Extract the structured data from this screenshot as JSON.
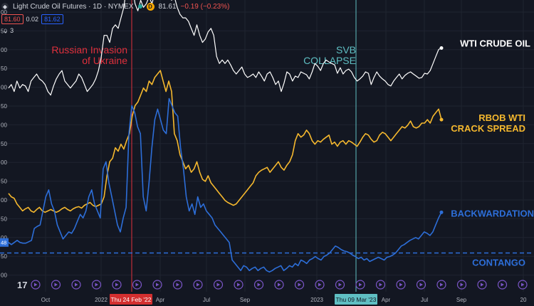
{
  "header": {
    "title": "Light Crude Oil Futures · 1D · NYMEX",
    "price": "81.61",
    "change": "−0.19 (−0.23%)",
    "sell": "81.60",
    "spread": "0.02",
    "buy": "81.62",
    "collapsed_count": "3",
    "d_badge": "D"
  },
  "colors": {
    "background": "#131722",
    "wti": "#ffffff",
    "rbob": "#f5b82e",
    "backwardation": "#2d6ed8",
    "invasion_line": "#e0303c",
    "svb_line": "#5fbfc3",
    "grid": "#1f2430"
  },
  "chart_data": {
    "type": "line",
    "x_labels": [
      "Oct",
      "2022",
      "Apr",
      "Jul",
      "Sep",
      "2023",
      "Apr",
      "Jul",
      "Sep",
      "20"
    ],
    "y_tick_labels": [
      "00",
      "50",
      "00",
      "50",
      "00",
      "50",
      "00",
      "50",
      "00",
      "50",
      "00",
      "50",
      "00",
      "50",
      "00"
    ],
    "left_price_label": "48",
    "grid": true,
    "events": [
      {
        "name": "Russian Invasion\nof Ukraine",
        "date_label": "Thu 24 Feb '22",
        "color": "#e0303c"
      },
      {
        "name": "SVB\nCOLLAPSE",
        "date_label": "Thu 09 Mar '23",
        "color": "#5fbfc3"
      }
    ],
    "series": [
      {
        "name": "WTI CRUDE OIL",
        "color": "#ffffff",
        "values": [
          155,
          160,
          150,
          165,
          155,
          160,
          158,
          150,
          165,
          170,
          175,
          168,
          165,
          160,
          150,
          145,
          158,
          168,
          175,
          180,
          165,
          160,
          155,
          160,
          165,
          175,
          170,
          160,
          150,
          155,
          160,
          168,
          180,
          200,
          230,
          230,
          220,
          240,
          245,
          240,
          255,
          270,
          300,
          310,
          300,
          275,
          265,
          280,
          270,
          275,
          285,
          275,
          290,
          300,
          320,
          335,
          310,
          290,
          280,
          285,
          270,
          260,
          255,
          255,
          250,
          240,
          230,
          245,
          230,
          220,
          225,
          235,
          240,
          230,
          200,
          190,
          195,
          190,
          195,
          188,
          180,
          175,
          180,
          185,
          175,
          170,
          172,
          175,
          170,
          178,
          172,
          165,
          175,
          178,
          170,
          160,
          165,
          150,
          162,
          178,
          175,
          165,
          172,
          170,
          178,
          176,
          174,
          168,
          178,
          190,
          186,
          180,
          190,
          195,
          192,
          190,
          188,
          176,
          184,
          175,
          180,
          182,
          178,
          170,
          165,
          168,
          172,
          178,
          176,
          160,
          170,
          178,
          172,
          168,
          165,
          160,
          158,
          165,
          170,
          175,
          168,
          173,
          176,
          178,
          175,
          172,
          169,
          170,
          176,
          175,
          180,
          190,
          200,
          210,
          212
        ]
      },
      {
        "name": "RBOB WTI\nCRACK SPREAD",
        "color": "#f5b82e",
        "values": [
          55,
          50,
          48,
          40,
          35,
          30,
          33,
          35,
          30,
          28,
          32,
          35,
          30,
          28,
          30,
          32,
          30,
          28,
          30,
          33,
          35,
          32,
          30,
          33,
          35,
          36,
          34,
          38,
          40,
          42,
          38,
          36,
          38,
          40,
          50,
          80,
          100,
          105,
          120,
          115,
          125,
          118,
          130,
          140,
          165,
          180,
          185,
          195,
          205,
          200,
          215,
          210,
          220,
          225,
          230,
          215,
          200,
          215,
          200,
          140,
          130,
          110,
          100,
          90,
          95,
          85,
          90,
          100,
          85,
          75,
          72,
          80,
          70,
          65,
          60,
          55,
          50,
          45,
          42,
          40,
          38,
          40,
          45,
          50,
          55,
          60,
          65,
          70,
          80,
          85,
          88,
          90,
          92,
          85,
          90,
          95,
          100,
          92,
          88,
          95,
          100,
          110,
          130,
          140,
          135,
          138,
          145,
          140,
          130,
          125,
          130,
          128,
          132,
          135,
          138,
          125,
          128,
          122,
          128,
          130,
          125,
          130,
          128,
          125,
          122,
          128,
          135,
          140,
          138,
          132,
          128,
          130,
          138,
          142,
          140,
          135,
          130,
          135,
          140,
          145,
          150,
          148,
          152,
          158,
          150,
          148,
          150,
          155,
          155,
          160,
          155,
          165,
          170,
          175,
          160
        ]
      },
      {
        "name": "BACKWARDATION",
        "color": "#2d6ed8",
        "values": [
          15,
          12,
          15,
          18,
          15,
          14,
          14,
          16,
          18,
          35,
          38,
          40,
          60,
          80,
          90,
          70,
          60,
          40,
          30,
          20,
          25,
          30,
          28,
          35,
          45,
          55,
          50,
          60,
          80,
          90,
          70,
          60,
          50,
          120,
          130,
          100,
          80,
          60,
          40,
          30,
          50,
          65,
          170,
          210,
          200,
          180,
          170,
          80,
          60,
          100,
          150,
          190,
          205,
          190,
          175,
          170,
          220,
          210,
          200,
          195,
          150,
          120,
          80,
          60,
          70,
          55,
          80,
          65,
          70,
          60,
          55,
          50,
          40,
          35,
          30,
          25,
          20,
          15,
          -10,
          -15,
          -20,
          -25,
          -18,
          -20,
          -25,
          -22,
          -20,
          -25,
          -22,
          -20,
          -25,
          -27,
          -25,
          -22,
          -20,
          -18,
          -25,
          -22,
          -18,
          -20,
          -15,
          -18,
          -10,
          -12,
          -15,
          -10,
          -8,
          -5,
          -8,
          -10,
          -5,
          -3,
          0,
          5,
          10,
          8,
          5,
          3,
          2,
          0,
          -3,
          -5,
          -8,
          -6,
          -10,
          -8,
          -12,
          -10,
          -8,
          -6,
          -8,
          -10,
          -6,
          -5,
          -3,
          0,
          5,
          10,
          12,
          15,
          18,
          20,
          22,
          20,
          25,
          30,
          28,
          25,
          30,
          40,
          50,
          58
        ]
      }
    ],
    "legend_labels": [
      "WTI CRUDE OIL",
      "RBOB WTI\nCRACK SPREAD",
      "BACKWARDATION",
      "CONTANGO"
    ],
    "zero_line_label": "CONTANGO"
  }
}
